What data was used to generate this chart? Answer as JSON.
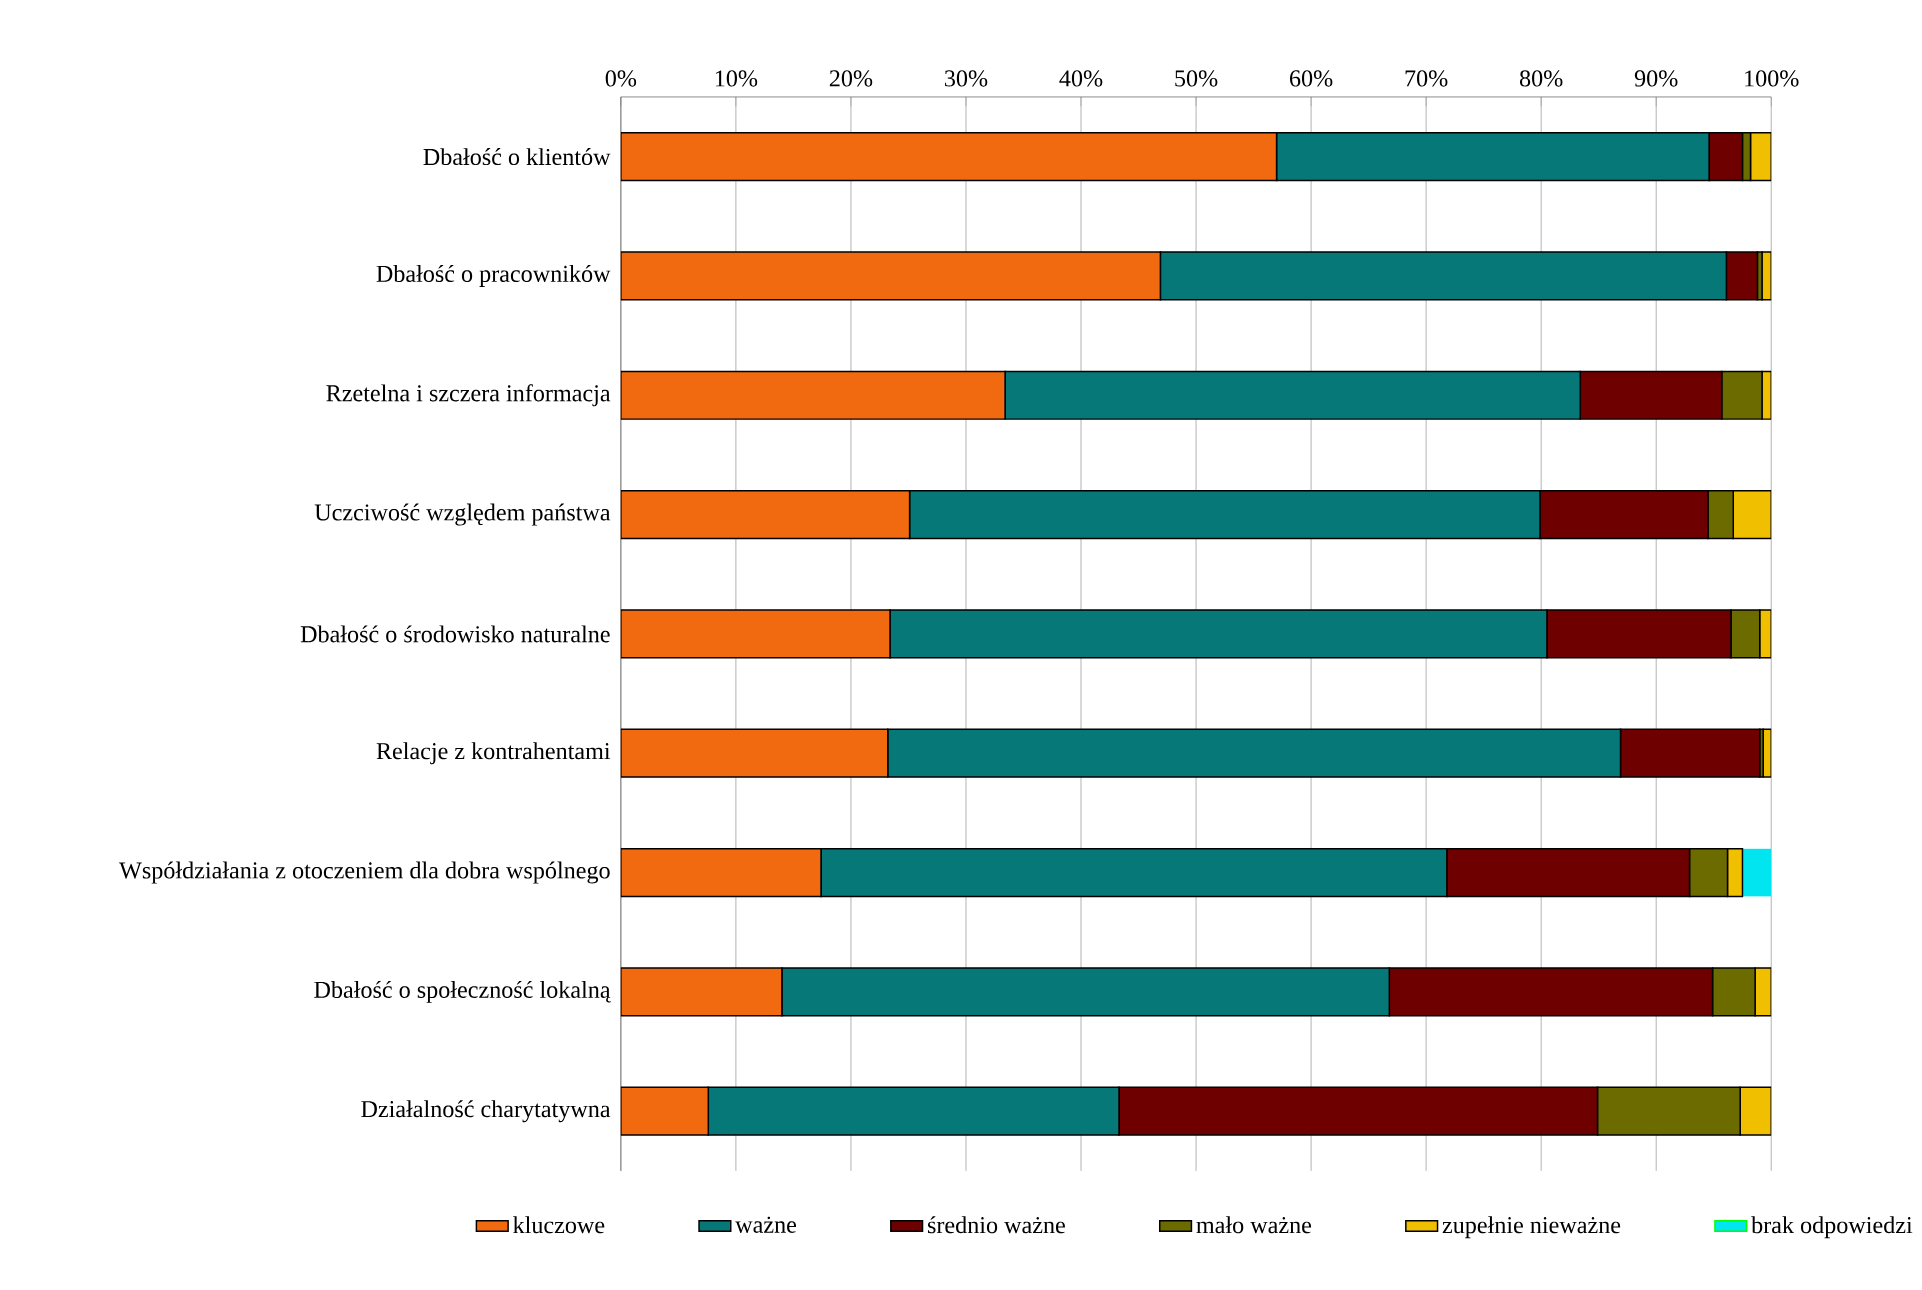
{
  "chart_data": {
    "type": "bar",
    "orientation": "horizontal",
    "stacked": true,
    "grid": "x",
    "legend": "bottom",
    "categories": [
      "Dbałość o klientów",
      "Dbałość o pracowników",
      "Rzetelna i szczera informacja",
      "Uczciwość względem państwa",
      "Dbałość o środowisko naturalne",
      "Relacje z kontrahentami",
      "Współdziałania z otoczeniem dla dobra wspólnego",
      "Dbałość o społeczność lokalną",
      "Działalność charytatywna"
    ],
    "xlim": [
      0,
      100
    ],
    "xticks": [
      {
        "value": 0,
        "label": "0%"
      },
      {
        "value": 10,
        "label": "10%"
      },
      {
        "value": 20,
        "label": "20%"
      },
      {
        "value": 30,
        "label": "30%"
      },
      {
        "value": 40,
        "label": "40%"
      },
      {
        "value": 50,
        "label": "50%"
      },
      {
        "value": 60,
        "label": "60%"
      },
      {
        "value": 70,
        "label": "70%"
      },
      {
        "value": 80,
        "label": "80%"
      },
      {
        "value": 90,
        "label": "90%"
      },
      {
        "value": 100,
        "label": "100%"
      }
    ],
    "series": [
      {
        "name": "kluczowe",
        "color": "#f26a10",
        "values": [
          57.0,
          46.9,
          33.4,
          25.1,
          23.4,
          23.2,
          17.4,
          14.0,
          7.6
        ]
      },
      {
        "name": "ważne",
        "color": "#077878",
        "values": [
          37.6,
          49.2,
          50.0,
          54.8,
          57.1,
          63.7,
          54.4,
          52.8,
          35.7
        ]
      },
      {
        "name": "średnio ważne",
        "color": "#6e0000",
        "values": [
          2.9,
          2.7,
          12.3,
          14.6,
          16.0,
          12.1,
          21.1,
          28.1,
          41.6
        ]
      },
      {
        "name": "mało ważne",
        "color": "#6b6b00",
        "values": [
          0.7,
          0.4,
          3.5,
          2.2,
          2.5,
          0.3,
          3.3,
          3.7,
          12.4
        ]
      },
      {
        "name": "zupełnie nieważne",
        "color": "#f0c000",
        "values": [
          1.8,
          0.8,
          0.8,
          3.3,
          1.0,
          0.7,
          1.3,
          1.4,
          2.7
        ]
      },
      {
        "name": "brak odpowiedzi",
        "color": "#00e5f0",
        "values": [
          null,
          null,
          null,
          null,
          null,
          null,
          2.5,
          null,
          null
        ]
      }
    ]
  }
}
